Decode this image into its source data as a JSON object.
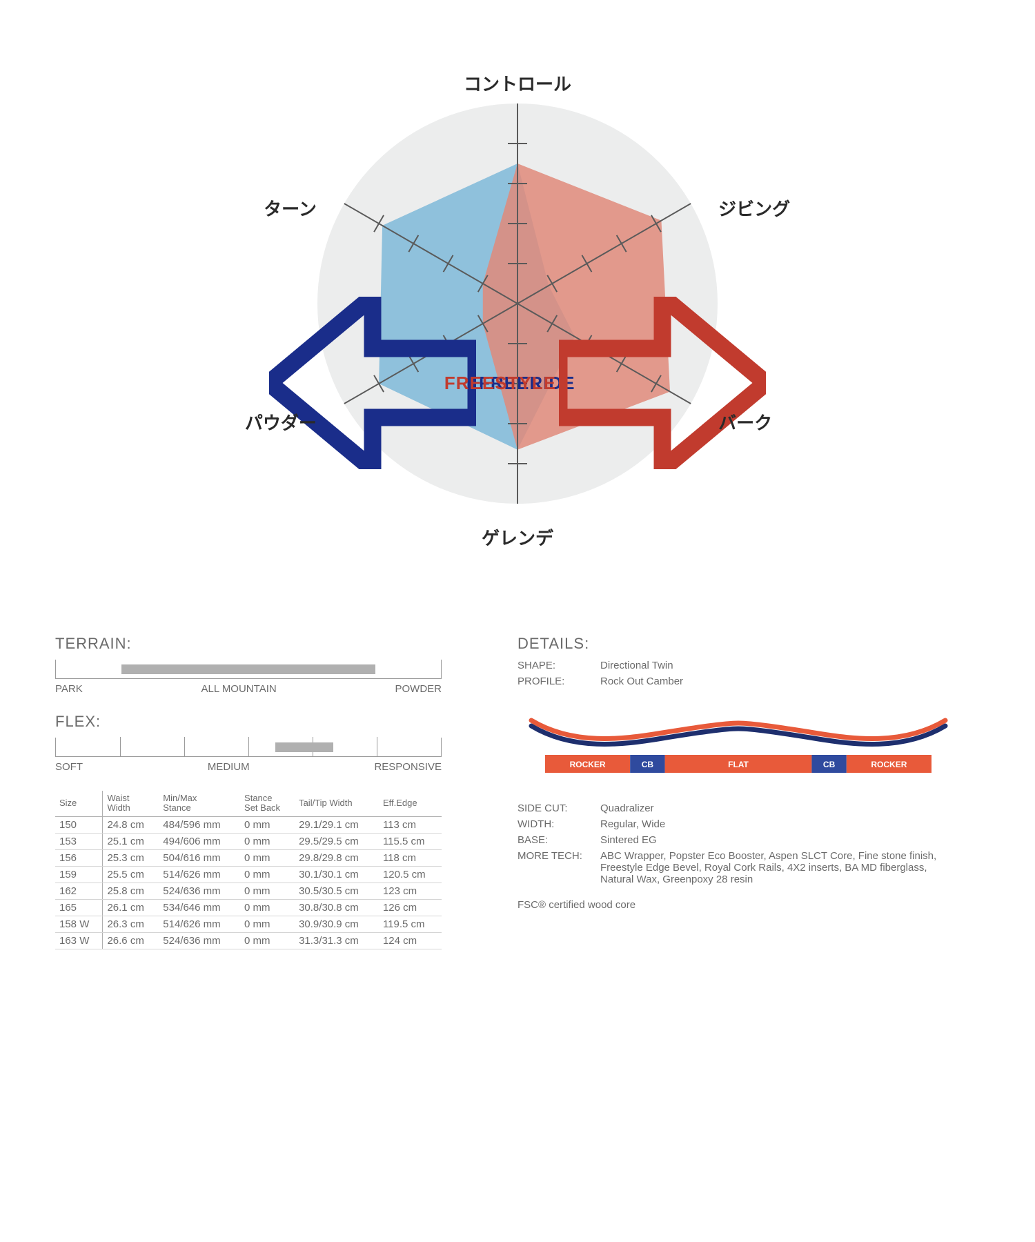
{
  "radar": {
    "axis_labels": [
      "コントロール",
      "ジビング",
      "バーク",
      "ゲレンデ",
      "パウダー",
      "ターン"
    ],
    "left_label": "FREERIDE",
    "right_label": "FREESTYLE",
    "left_color": "#1a2d8a",
    "right_color": "#c13b2e",
    "circle_fill": "#eceded",
    "axis_color": "#5a5a5a",
    "tick_color": "#5a5a5a",
    "poly_left_fill": "#7fb8d8",
    "poly_left_opacity": 0.85,
    "poly_right_fill": "#e08a7a",
    "poly_right_opacity": 0.85,
    "radius": 290,
    "ticks_per_axis": 4,
    "left_values": [
      0.7,
      0.18,
      0.33,
      0.73,
      0.8,
      0.78
    ],
    "right_values": [
      0.7,
      0.83,
      0.88,
      0.73,
      0.2,
      0.2
    ]
  },
  "terrain": {
    "title": "TERRAIN:",
    "labels": [
      "PARK",
      "ALL MOUNTAIN",
      "POWDER"
    ],
    "fill_start": 0.17,
    "fill_end": 0.83,
    "fill_color": "#b0b0b0"
  },
  "flex": {
    "title": "FLEX:",
    "labels": [
      "SOFT",
      "MEDIUM",
      "RESPONSIVE"
    ],
    "tick_count": 6,
    "fill_start": 0.57,
    "fill_end": 0.72,
    "fill_color": "#b0b0b0"
  },
  "size_table": {
    "columns": [
      "Size",
      "Waist\nWidth",
      "Min/Max\nStance",
      "Stance\nSet Back",
      "Tail/Tip Width",
      "Eff.Edge"
    ],
    "rows": [
      [
        "150",
        "24.8 cm",
        "484/596 mm",
        "0 mm",
        "29.1/29.1 cm",
        "113 cm"
      ],
      [
        "153",
        "25.1 cm",
        "494/606 mm",
        "0 mm",
        "29.5/29.5 cm",
        "115.5 cm"
      ],
      [
        "156",
        "25.3 cm",
        "504/616 mm",
        "0 mm",
        "29.8/29.8 cm",
        "118 cm"
      ],
      [
        "159",
        "25.5 cm",
        "514/626 mm",
        "0 mm",
        "30.1/30.1 cm",
        "120.5 cm"
      ],
      [
        "162",
        "25.8 cm",
        "524/636 mm",
        "0 mm",
        "30.5/30.5 cm",
        "123 cm"
      ],
      [
        "165",
        "26.1 cm",
        "534/646 mm",
        "0 mm",
        "30.8/30.8 cm",
        "126 cm"
      ],
      [
        "158 W",
        "26.3 cm",
        "514/626 mm",
        "0 mm",
        "30.9/30.9 cm",
        "119.5 cm"
      ],
      [
        "163 W",
        "26.6 cm",
        "524/636 mm",
        "0 mm",
        "31.3/31.3 cm",
        "124 cm"
      ]
    ]
  },
  "details": {
    "title": "DETAILS:",
    "rows": [
      {
        "label": "SHAPE:",
        "value": "Directional Twin"
      },
      {
        "label": "PROFILE:",
        "value": "Rock Out Camber"
      }
    ],
    "rows2": [
      {
        "label": "SIDE CUT:",
        "value": "Quadralizer"
      },
      {
        "label": "WIDTH:",
        "value": "Regular, Wide"
      },
      {
        "label": "BASE:",
        "value": "Sintered EG"
      },
      {
        "label": "MORE TECH:",
        "value": "ABC Wrapper, Popster Eco Booster, Aspen SLCT Core, Fine stone finish, Freestyle Edge Bevel, Royal Cork Rails, 4X2 inserts, BA MD fiberglass, Natural Wax, Greenpoxy 28 resin"
      }
    ],
    "cert": "FSC® certified wood core"
  },
  "profile": {
    "segments": [
      "ROCKER",
      "CB",
      "FLAT",
      "CB",
      "ROCKER"
    ],
    "seg_widths": [
      0.22,
      0.09,
      0.38,
      0.09,
      0.22
    ],
    "seg_colors": [
      "#e85a3a",
      "#2f4a9e",
      "#e85a3a",
      "#2f4a9e",
      "#e85a3a"
    ],
    "curve_top_color": "#e85a3a",
    "curve_under_color": "#1e2f6e",
    "seg_text_color": "#ffffff"
  }
}
